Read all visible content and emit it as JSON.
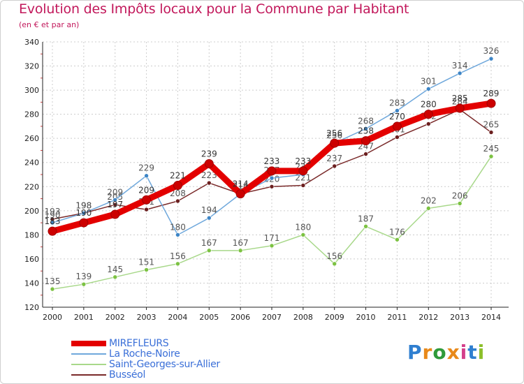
{
  "title": "Evolution des Impôts locaux pour la Commune par Habitant",
  "subtitle": "(en € et par an)",
  "logo": {
    "text": "Proxiti",
    "letters": [
      "P",
      "r",
      "o",
      "x",
      "i",
      "t",
      "i"
    ],
    "colors": [
      "#2f7fd0",
      "#e8891a",
      "#2f9a3a",
      "#e8891a",
      "#d43f8a",
      "#2f7fd0",
      "#8cbf2a"
    ]
  },
  "colors": {
    "title": "#c2185b",
    "axis": "#222222",
    "grid": "#cccccc",
    "tick_marks": "#d04040"
  },
  "chart_data": {
    "type": "line",
    "title": "Evolution des Impôts locaux pour la Commune par Habitant",
    "subtitle": "(en € et par an)",
    "xlabel": "",
    "ylabel": "",
    "x": [
      2000,
      2001,
      2002,
      2003,
      2004,
      2005,
      2006,
      2007,
      2008,
      2009,
      2010,
      2011,
      2012,
      2013,
      2014
    ],
    "ylim": [
      120,
      340
    ],
    "yticks": [
      120,
      140,
      160,
      180,
      200,
      220,
      240,
      260,
      280,
      300,
      320,
      340
    ],
    "grid": true,
    "legend_position": "bottom-left",
    "series": [
      {
        "name": "Saint-Georges-sur-Allier",
        "color": "#a8d88a",
        "marker": "#7cc242",
        "label_color": "#555555",
        "values": [
          135,
          139,
          145,
          151,
          156,
          167,
          167,
          171,
          180,
          156,
          187,
          176,
          202,
          206,
          245
        ]
      },
      {
        "name": "Busséol",
        "color": "#7a2a2a",
        "marker": "#6b1f1f",
        "label_color": "#555555",
        "values": [
          193,
          198,
          205,
          201,
          208,
          223,
          214,
          220,
          221,
          237,
          247,
          261,
          272,
          284,
          265
        ]
      },
      {
        "name": "La Roche-Noire",
        "color": "#6fa8dc",
        "marker": "#3d85c6",
        "label_color": "#555555",
        "values": [
          190,
          198,
          209,
          229,
          180,
          194,
          214,
          227,
          230,
          256,
          268,
          283,
          301,
          314,
          326
        ]
      },
      {
        "name": "MIREFLEURS",
        "color": "#e30000",
        "marker": "#cc0000",
        "label_color": "#333333",
        "values": [
          183,
          190,
          197,
          209,
          221,
          239,
          214,
          233,
          233,
          256,
          258,
          270,
          280,
          285,
          289
        ]
      }
    ],
    "legend_order": [
      "MIREFLEURS",
      "La Roche-Noire",
      "Saint-Georges-sur-Allier",
      "Busséol"
    ]
  }
}
